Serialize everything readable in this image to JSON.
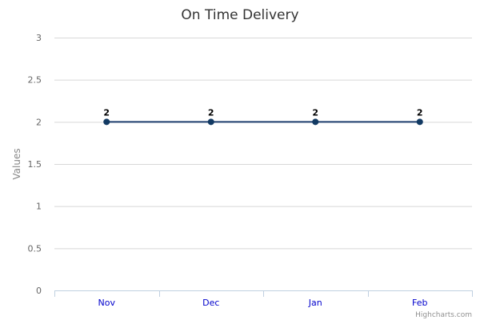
{
  "chart_data": {
    "type": "line",
    "title": "On Time Delivery",
    "xlabel": "",
    "ylabel": "Values",
    "categories": [
      "Nov",
      "Dec",
      "Jan",
      "Feb"
    ],
    "series": [
      {
        "values": [
          2,
          2,
          2,
          2
        ]
      }
    ],
    "ylim": [
      0,
      3
    ],
    "yticks": [
      "0",
      "0.5",
      "1",
      "1.5",
      "2",
      "2.5",
      "3"
    ],
    "data_labels": true,
    "grid": true,
    "legend": "none"
  },
  "colors": {
    "series": "#1f3f6e",
    "marker": "#123a63",
    "category_labels": "#0000cc"
  },
  "credit": "Highcharts.com"
}
